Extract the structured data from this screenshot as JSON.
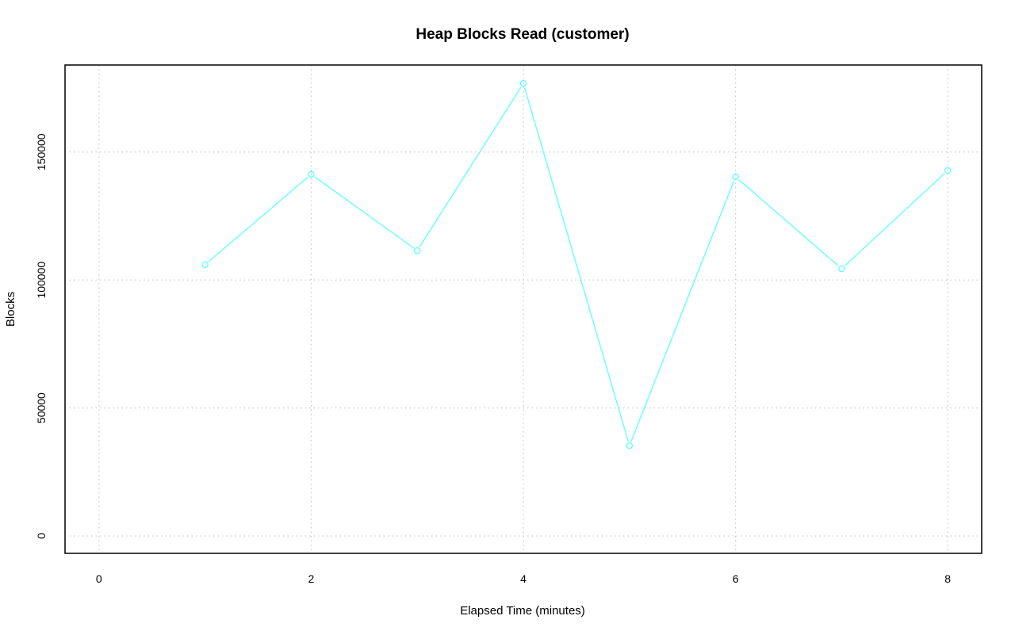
{
  "chart_data": {
    "type": "line",
    "title": "Heap Blocks Read (customer)",
    "xlabel": "Elapsed Time (minutes)",
    "ylabel": "Blocks",
    "xlim": [
      -0.32,
      8.32
    ],
    "ylim": [
      -6800,
      184000
    ],
    "x_ticks": [
      0,
      2,
      4,
      6,
      8
    ],
    "x_tick_labels": [
      "0",
      "2",
      "4",
      "6",
      "8"
    ],
    "y_ticks": [
      0,
      50000,
      100000,
      150000
    ],
    "y_tick_labels": [
      "0",
      "50000",
      "100000",
      "150000"
    ],
    "grid": true,
    "series": [
      {
        "color": "#66ffff",
        "marker": "circle",
        "x": [
          1,
          2,
          3,
          4,
          5,
          6,
          7,
          8
        ],
        "y": [
          106000,
          141300,
          111500,
          176800,
          35300,
          140300,
          104400,
          142800
        ]
      }
    ]
  }
}
